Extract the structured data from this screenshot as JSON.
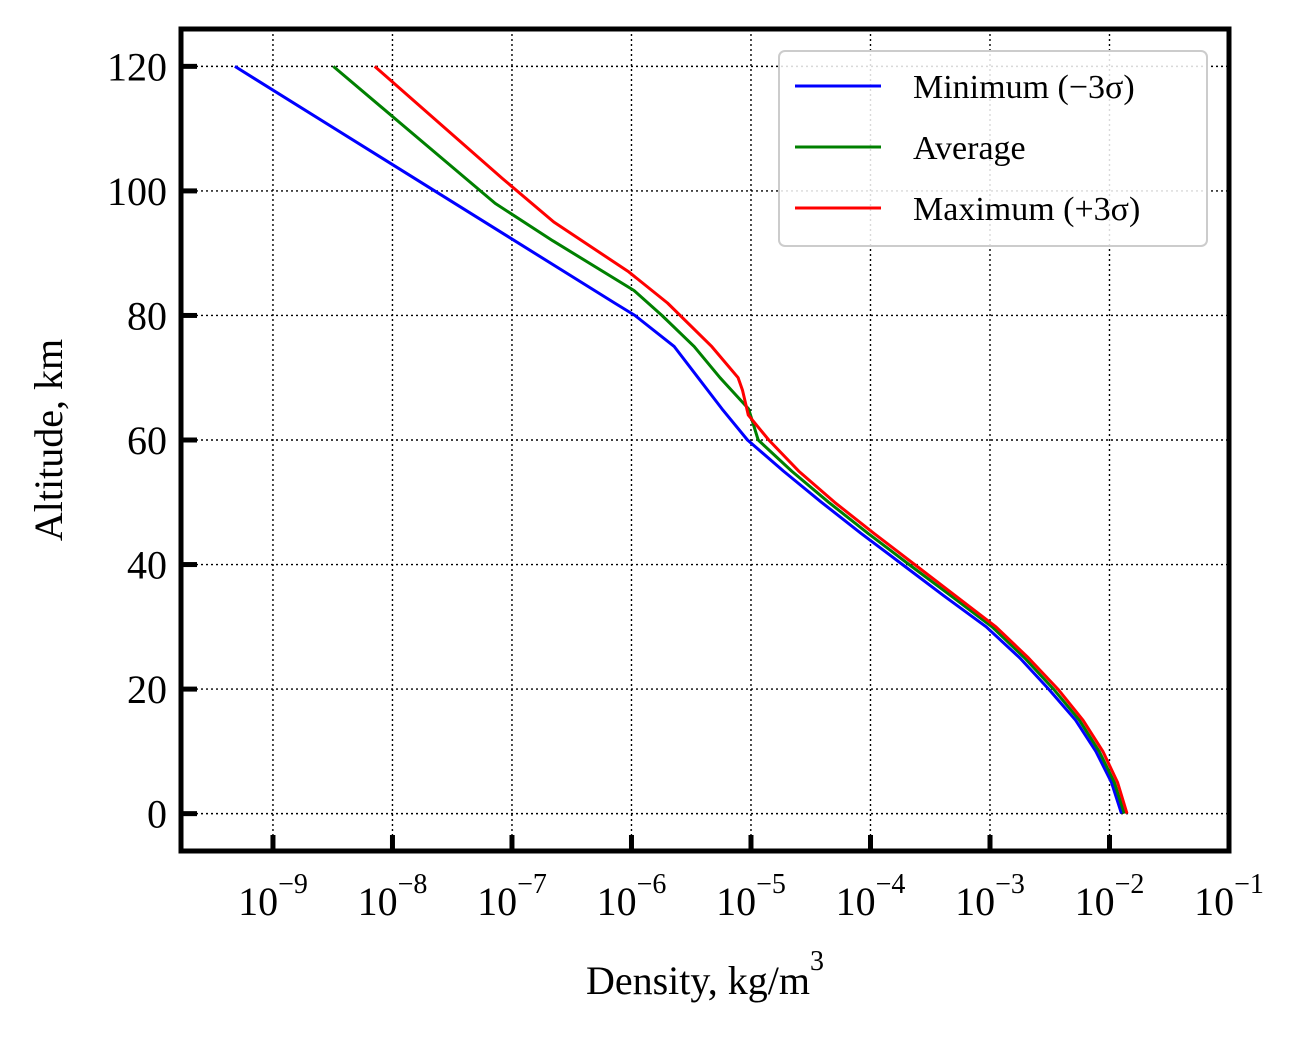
{
  "chart_data": {
    "type": "line",
    "xlabel": "Density, kg/m",
    "xlabel_superscript": "3",
    "ylabel": "Altitude, km",
    "x_scale": "log",
    "xlim": [
      1.7e-10,
      0.1
    ],
    "ylim": [
      -6,
      126
    ],
    "x_ticks": [
      {
        "base": "10",
        "exp": "−9",
        "value": 1e-09
      },
      {
        "base": "10",
        "exp": "−8",
        "value": 1e-08
      },
      {
        "base": "10",
        "exp": "−7",
        "value": 1e-07
      },
      {
        "base": "10",
        "exp": "−6",
        "value": 1e-06
      },
      {
        "base": "10",
        "exp": "−5",
        "value": 1e-05
      },
      {
        "base": "10",
        "exp": "−4",
        "value": 0.0001
      },
      {
        "base": "10",
        "exp": "−3",
        "value": 0.001
      },
      {
        "base": "10",
        "exp": "−2",
        "value": 0.01
      },
      {
        "base": "10",
        "exp": "−1",
        "value": 0.1
      }
    ],
    "y_ticks": [
      "0",
      "20",
      "40",
      "60",
      "80",
      "100",
      "120"
    ],
    "y_tick_values": [
      0,
      20,
      40,
      60,
      80,
      100,
      120
    ],
    "grid": true,
    "legend_position": "top-right",
    "series": [
      {
        "name": "Minimum (−3σ)",
        "color": "#0000ff",
        "points": [
          [
            0.0126,
            0
          ],
          [
            0.0104,
            5
          ],
          [
            0.0077,
            10
          ],
          [
            0.0052,
            15
          ],
          [
            0.0031,
            20
          ],
          [
            0.00178,
            25
          ],
          [
            0.00093,
            30
          ],
          [
            0.00041,
            35
          ],
          [
            0.000185,
            40
          ],
          [
            8.34e-05,
            45
          ],
          [
            3.89e-05,
            50
          ],
          [
            1.87e-05,
            55
          ],
          [
            9.36e-06,
            60
          ],
          [
            5.72e-06,
            65
          ],
          [
            3.61e-06,
            70
          ],
          [
            2.28e-06,
            75
          ],
          [
            1.07e-06,
            80
          ],
          [
            7.23e-07,
            82
          ],
          [
            4.8e-10,
            120
          ]
        ]
      },
      {
        "name": "Average",
        "color": "#008000",
        "points": [
          [
            0.0133,
            0
          ],
          [
            0.011,
            5
          ],
          [
            0.0082,
            10
          ],
          [
            0.0056,
            15
          ],
          [
            0.0034,
            20
          ],
          [
            0.00195,
            25
          ],
          [
            0.00104,
            30
          ],
          [
            0.00047,
            35
          ],
          [
            0.00021,
            40
          ],
          [
            9.55e-05,
            45
          ],
          [
            4.47e-05,
            50
          ],
          [
            2.19e-05,
            55
          ],
          [
            1.15e-05,
            60
          ],
          [
            9.55e-06,
            65
          ],
          [
            5.5e-06,
            70
          ],
          [
            3.35e-06,
            75
          ],
          [
            1.8e-06,
            80
          ],
          [
            1.05e-06,
            84
          ],
          [
            2.19e-07,
            92
          ],
          [
            7.24e-08,
            98
          ],
          [
            3.2e-09,
            120
          ]
        ]
      },
      {
        "name": "Maximum (+3σ)",
        "color": "#ff0000",
        "points": [
          [
            0.014,
            0
          ],
          [
            0.0117,
            5
          ],
          [
            0.0088,
            10
          ],
          [
            0.006,
            15
          ],
          [
            0.0037,
            20
          ],
          [
            0.0021,
            25
          ],
          [
            0.00112,
            30
          ],
          [
            0.000513,
            35
          ],
          [
            0.000234,
            40
          ],
          [
            0.000107,
            45
          ],
          [
            5.01e-05,
            50
          ],
          [
            2.51e-05,
            55
          ],
          [
            1.41e-05,
            60
          ],
          [
            9.5e-06,
            64
          ],
          [
            8.5e-06,
            68
          ],
          [
            7.8e-06,
            70
          ],
          [
            4.7e-06,
            75
          ],
          [
            2e-06,
            82
          ],
          [
            9.5e-07,
            87
          ],
          [
            2.24e-07,
            95
          ],
          [
            8.32e-08,
            102
          ],
          [
            7.1e-09,
            120
          ]
        ]
      }
    ]
  }
}
